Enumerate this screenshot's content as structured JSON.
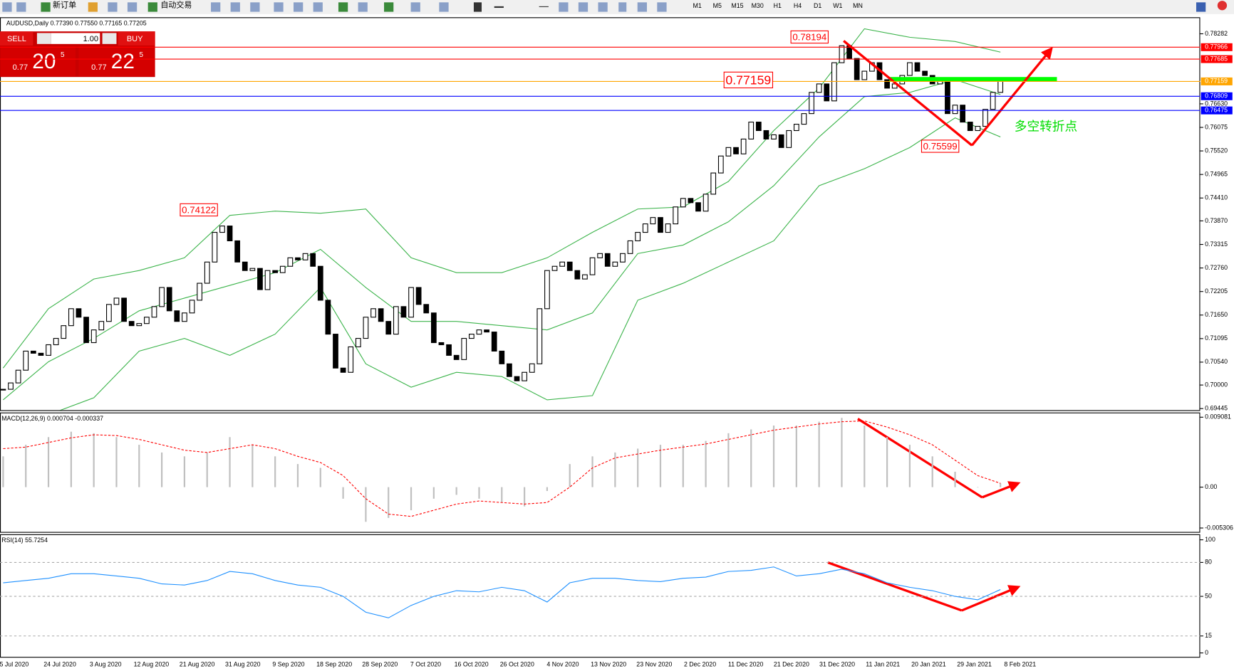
{
  "toolbar": {
    "new_order": "新订单",
    "auto_trading": "自动交易",
    "timeframes": [
      "M1",
      "M5",
      "M15",
      "M30",
      "H1",
      "H4",
      "D1",
      "W1",
      "MN"
    ]
  },
  "trade_panel": {
    "sell": "SELL",
    "buy": "BUY",
    "lots": "1.00",
    "sell_price": {
      "big": "0.77",
      "pips": "20",
      "point": "5"
    },
    "buy_price": {
      "big": "0.77",
      "pips": "22",
      "point": "5"
    }
  },
  "chart_data": [
    {
      "type": "candlestick",
      "title": "AUDUSD,Daily  0.77390 0.77550 0.77165 0.77205",
      "values": [
        0.699,
        0.7005,
        0.7035,
        0.708,
        0.7075,
        0.707,
        0.7095,
        0.711,
        0.714,
        0.718,
        0.716,
        0.71,
        0.713,
        0.715,
        0.719,
        0.7205,
        0.715,
        0.714,
        0.7145,
        0.716,
        0.7185,
        0.723,
        0.7175,
        0.715,
        0.717,
        0.72,
        0.724,
        0.729,
        0.736,
        0.7375,
        0.734,
        0.729,
        0.727,
        0.7275,
        0.7225,
        0.727,
        0.7265,
        0.728,
        0.73,
        0.7295,
        0.731,
        0.728,
        0.72,
        0.712,
        0.704,
        0.703,
        0.709,
        0.711,
        0.716,
        0.718,
        0.715,
        0.712,
        0.7185,
        0.716,
        0.723,
        0.719,
        0.717,
        0.71,
        0.7095,
        0.707,
        0.706,
        0.711,
        0.712,
        0.713,
        0.7125,
        0.708,
        0.705,
        0.702,
        0.701,
        0.703,
        0.705,
        0.718,
        0.727,
        0.728,
        0.729,
        0.727,
        0.725,
        0.726,
        0.73,
        0.731,
        0.728,
        0.729,
        0.731,
        0.734,
        0.736,
        0.738,
        0.7395,
        0.736,
        0.738,
        0.742,
        0.744,
        0.743,
        0.741,
        0.745,
        0.75,
        0.754,
        0.756,
        0.7545,
        0.758,
        0.762,
        0.76,
        0.758,
        0.759,
        0.756,
        0.76,
        0.7615,
        0.764,
        0.769,
        0.771,
        0.767,
        0.776,
        0.78,
        0.777,
        0.772,
        0.774,
        0.776,
        0.772,
        0.77,
        0.771,
        0.773,
        0.776,
        0.774,
        0.773,
        0.771,
        0.772,
        0.764,
        0.766,
        0.762,
        0.76,
        0.761,
        0.765,
        0.769,
        0.772,
        0.772
      ],
      "up_color": "#ffffff",
      "down_color": "#000000",
      "bands": {
        "color": "#3cb44b",
        "upper": [
          0.704,
          0.718,
          0.725,
          0.727,
          0.73,
          0.74,
          0.741,
          0.7405,
          0.7415,
          0.73,
          0.7265,
          0.7265,
          0.73,
          0.736,
          0.7415,
          0.742,
          0.748,
          0.76,
          0.77,
          0.784,
          0.782,
          0.781,
          0.7785
        ],
        "middle": [
          0.6965,
          0.7055,
          0.711,
          0.7175,
          0.7205,
          0.7235,
          0.7265,
          0.732,
          0.723,
          0.715,
          0.715,
          0.714,
          0.713,
          0.717,
          0.731,
          0.733,
          0.7385,
          0.747,
          0.7585,
          0.768,
          0.769,
          0.772,
          0.7685
        ],
        "lower": [
          0.689,
          0.693,
          0.697,
          0.708,
          0.711,
          0.707,
          0.712,
          0.723,
          0.705,
          0.6995,
          0.703,
          0.702,
          0.6965,
          0.6975,
          0.72,
          0.724,
          0.729,
          0.734,
          0.747,
          0.751,
          0.756,
          0.763,
          0.7585
        ]
      },
      "ylim": [
        0.69445,
        0.78282
      ],
      "yticks": [
        {
          "value": 0.78282,
          "label": "0.78282"
        },
        {
          "value": 0.7663,
          "label": "0.76630"
        },
        {
          "value": 0.76075,
          "label": "0.76075"
        },
        {
          "value": 0.7552,
          "label": "0.75520"
        },
        {
          "value": 0.74965,
          "label": "0.74965"
        },
        {
          "value": 0.7441,
          "label": "0.74410"
        },
        {
          "value": 0.7387,
          "label": "0.73870"
        },
        {
          "value": 0.73315,
          "label": "0.73315"
        },
        {
          "value": 0.7276,
          "label": "0.72760"
        },
        {
          "value": 0.72205,
          "label": "0.72205"
        },
        {
          "value": 0.7165,
          "label": "0.71650"
        },
        {
          "value": 0.71095,
          "label": "0.71095"
        },
        {
          "value": 0.7054,
          "label": "0.70540"
        },
        {
          "value": 0.7,
          "label": "0.70000"
        },
        {
          "value": 0.69445,
          "label": "0.69445"
        }
      ],
      "levels": [
        {
          "value": 0.77966,
          "label": "0.77966",
          "color": "#ff0000"
        },
        {
          "value": 0.77685,
          "label": "0.77685",
          "color": "#ff0000"
        },
        {
          "value": 0.77159,
          "label": "0.77159",
          "color": "#ffa500"
        },
        {
          "value": 0.76809,
          "label": "0.76809",
          "color": "#0000ff"
        },
        {
          "value": 0.76475,
          "label": "0.76475",
          "color": "#0000ff"
        }
      ],
      "annotations": [
        "0.78194",
        "0.77159",
        "0.75599",
        "0.74122",
        "多空转折点"
      ],
      "x_labels": [
        "5 Jul 2020",
        "24 Jul 2020",
        "3 Aug 2020",
        "12 Aug 2020",
        "21 Aug 2020",
        "31 Aug 2020",
        "9 Sep 2020",
        "18 Sep 2020",
        "28 Sep 2020",
        "7 Oct 2020",
        "16 Oct 2020",
        "26 Oct 2020",
        "4 Nov 2020",
        "13 Nov 2020",
        "23 Nov 2020",
        "2 Dec 2020",
        "11 Dec 2020",
        "21 Dec 2020",
        "31 Dec 2020",
        "11 Jan 2021",
        "20 Jan 2021",
        "29 Jan 2021",
        "8 Feb 2021"
      ]
    },
    {
      "type": "macd",
      "title": "MACD(12,26,9) 0.000704 -0.000337",
      "color": "#c0c0c0",
      "signal_color": "#ff0000",
      "values": [
        0.004,
        0.0055,
        0.0065,
        0.0072,
        0.007,
        0.0065,
        0.0055,
        0.0045,
        0.004,
        0.0045,
        0.0065,
        0.0055,
        0.004,
        0.003,
        0.0025,
        -0.0015,
        -0.0045,
        -0.004,
        -0.003,
        -0.0015,
        -0.001,
        -0.0015,
        -0.002,
        -0.0025,
        -0.0005,
        0.003,
        0.004,
        0.0045,
        0.005,
        0.0055,
        0.0055,
        0.006,
        0.007,
        0.0075,
        0.008,
        0.008,
        0.0085,
        0.009,
        0.008,
        0.0065,
        0.0055,
        0.004,
        0.002,
        0.0,
        0.0005
      ],
      "signal": [
        0.005,
        0.0052,
        0.0058,
        0.0064,
        0.0068,
        0.0067,
        0.0062,
        0.0055,
        0.0048,
        0.0045,
        0.005,
        0.0055,
        0.005,
        0.004,
        0.0032,
        0.0015,
        -0.0015,
        -0.0035,
        -0.0038,
        -0.003,
        -0.0022,
        -0.0018,
        -0.002,
        -0.0022,
        -0.002,
        0.0,
        0.0025,
        0.0038,
        0.0043,
        0.0048,
        0.0052,
        0.0056,
        0.0062,
        0.0068,
        0.0074,
        0.0078,
        0.0082,
        0.0085,
        0.0086,
        0.0078,
        0.0068,
        0.0055,
        0.0035,
        0.0015,
        0.0005
      ],
      "ylim": [
        -0.005306,
        0.009081
      ],
      "yticks": [
        0.009081,
        {
          "value": 0,
          "label": "0.00"
        },
        -0.005306
      ]
    },
    {
      "type": "line",
      "title": "RSI(14) 55.7254",
      "color": "#1e90ff",
      "values": [
        62,
        64,
        66,
        70,
        70,
        68,
        66,
        61,
        60,
        64,
        72,
        70,
        64,
        60,
        58,
        50,
        36,
        31,
        42,
        50,
        55,
        54,
        58,
        55,
        45,
        62,
        66,
        66,
        64,
        63,
        66,
        67,
        72,
        73,
        76,
        68,
        70,
        74,
        70,
        62,
        58,
        55,
        50,
        47,
        56
      ],
      "ylim": [
        0,
        100
      ],
      "yticks": [
        100,
        80,
        50,
        15,
        0
      ]
    }
  ]
}
